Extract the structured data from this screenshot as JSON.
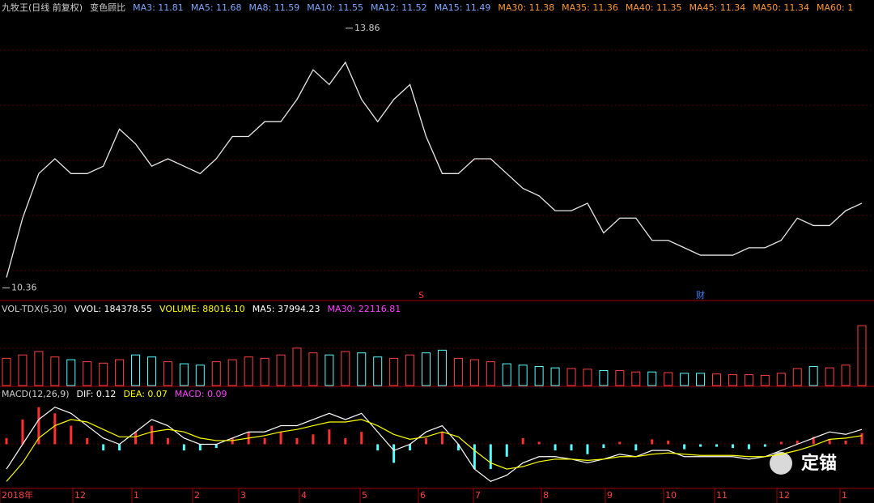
{
  "header": [
    {
      "text": "九牧王(日线 前复权)",
      "color": "#d0d0d0"
    },
    {
      "text": "变色顾比",
      "color": "#d0d0d0"
    },
    {
      "text": "MA3: 11.81",
      "color": "#7fa8ff"
    },
    {
      "text": "MA5: 11.68",
      "color": "#7fa8ff"
    },
    {
      "text": "MA8: 11.59",
      "color": "#7fa8ff"
    },
    {
      "text": "MA10: 11.55",
      "color": "#7fa8ff"
    },
    {
      "text": "MA12: 11.52",
      "color": "#7fa8ff"
    },
    {
      "text": "MA15: 11.49",
      "color": "#7fa8ff"
    },
    {
      "text": "MA30: 11.38",
      "color": "#ff9933"
    },
    {
      "text": "MA35: 11.36",
      "color": "#ff9933"
    },
    {
      "text": "MA40: 11.35",
      "color": "#ff9933"
    },
    {
      "text": "MA45: 11.34",
      "color": "#ff9933"
    },
    {
      "text": "MA50: 11.34",
      "color": "#ff9933"
    },
    {
      "text": "MA60: 1",
      "color": "#ff9933"
    }
  ],
  "chart_data": [
    {
      "type": "line",
      "color": "#e8e8e8",
      "values": [
        10.5,
        11.3,
        11.9,
        12.1,
        11.9,
        11.9,
        12.0,
        12.5,
        12.3,
        12.0,
        12.1,
        12.0,
        11.9,
        12.1,
        12.4,
        12.4,
        12.6,
        12.6,
        12.9,
        13.3,
        13.1,
        13.4,
        12.9,
        12.6,
        12.9,
        13.1,
        12.4,
        11.9,
        11.9,
        12.1,
        12.1,
        11.9,
        11.7,
        11.6,
        11.4,
        11.4,
        11.5,
        11.1,
        11.3,
        11.3,
        11.0,
        11.0,
        10.9,
        10.8,
        10.8,
        10.8,
        10.9,
        10.9,
        11.0,
        11.3,
        11.2,
        11.2,
        11.4,
        11.5
      ],
      "ylim": [
        10.2,
        14.0
      ],
      "annotations": [
        {
          "text": "13.86",
          "value": 13.86
        },
        {
          "text": "10.36",
          "value": 10.36
        }
      ]
    },
    {
      "type": "bar",
      "up_color": "#ff4040",
      "down_color": "#55ffff",
      "legend": [
        {
          "text": "VOL-TDX(5,30)",
          "color": "#d0d0d0"
        },
        {
          "text": "VVOL: 184378.55",
          "color": "#ffffff"
        },
        {
          "text": "VOLUME: 88016.10",
          "color": "#ffff00"
        },
        {
          "text": "MA5: 37994.23",
          "color": "#ffffff"
        },
        {
          "text": "MA30: 22116.81",
          "color": "#ff40ff"
        }
      ],
      "values": [
        40000,
        45000,
        50000,
        42000,
        38000,
        35000,
        33000,
        38000,
        45000,
        42000,
        35000,
        32000,
        30000,
        35000,
        38000,
        42000,
        40000,
        45000,
        55000,
        48000,
        45000,
        50000,
        48000,
        42000,
        40000,
        45000,
        48000,
        52000,
        40000,
        38000,
        35000,
        32000,
        30000,
        28000,
        26000,
        25000,
        24000,
        22000,
        22000,
        20000,
        20000,
        19000,
        18000,
        18000,
        17000,
        16000,
        16000,
        15000,
        18000,
        25000,
        28000,
        26000,
        30000,
        88016.1
      ],
      "ylim": [
        0,
        100000
      ]
    },
    {
      "type": "macd",
      "up_color": "#ff3030",
      "down_color": "#55ffff",
      "legend": [
        {
          "text": "MACD(12,26,9)",
          "color": "#d0d0d0"
        },
        {
          "text": "DIF: 0.12",
          "color": "#ffffff"
        },
        {
          "text": "DEA: 0.07",
          "color": "#ffff00"
        },
        {
          "text": "MACD: 0.09",
          "color": "#ff40ff"
        }
      ],
      "series": [
        {
          "name": "MACD",
          "values": [
            0.05,
            0.2,
            0.3,
            0.25,
            0.15,
            0.05,
            -0.05,
            -0.05,
            0.1,
            0.15,
            0.05,
            -0.05,
            -0.05,
            -0.03,
            0.05,
            0.1,
            0.05,
            0.1,
            0.05,
            0.08,
            0.12,
            0.05,
            0.1,
            -0.05,
            -0.15,
            -0.05,
            0.05,
            0.1,
            -0.05,
            -0.2,
            -0.2,
            -0.1,
            0.05,
            0.02,
            -0.05,
            -0.05,
            -0.08,
            -0.03,
            0.02,
            -0.05,
            0.04,
            0.03,
            -0.04,
            -0.02,
            -0.02,
            -0.03,
            -0.04,
            -0.02,
            0.02,
            0.03,
            0.06,
            0.04,
            0.03,
            0.09
          ]
        },
        {
          "name": "DIF",
          "color": "#ffffff",
          "values": [
            -0.2,
            0.0,
            0.2,
            0.3,
            0.25,
            0.15,
            0.05,
            0.0,
            0.1,
            0.2,
            0.15,
            0.05,
            0.0,
            0.0,
            0.05,
            0.1,
            0.1,
            0.15,
            0.15,
            0.2,
            0.25,
            0.2,
            0.25,
            0.1,
            -0.05,
            0.0,
            0.1,
            0.15,
            0.0,
            -0.2,
            -0.3,
            -0.25,
            -0.15,
            -0.1,
            -0.1,
            -0.12,
            -0.15,
            -0.12,
            -0.08,
            -0.1,
            -0.05,
            -0.05,
            -0.1,
            -0.1,
            -0.1,
            -0.1,
            -0.12,
            -0.1,
            -0.05,
            0.0,
            0.05,
            0.1,
            0.08,
            0.12
          ]
        },
        {
          "name": "DEA",
          "color": "#ffff00",
          "values": [
            -0.3,
            -0.15,
            0.05,
            0.15,
            0.2,
            0.18,
            0.12,
            0.06,
            0.06,
            0.1,
            0.12,
            0.1,
            0.05,
            0.03,
            0.03,
            0.05,
            0.07,
            0.1,
            0.12,
            0.15,
            0.18,
            0.18,
            0.2,
            0.15,
            0.08,
            0.04,
            0.06,
            0.1,
            0.06,
            -0.05,
            -0.15,
            -0.2,
            -0.18,
            -0.14,
            -0.12,
            -0.12,
            -0.13,
            -0.12,
            -0.1,
            -0.1,
            -0.08,
            -0.07,
            -0.08,
            -0.09,
            -0.09,
            -0.09,
            -0.1,
            -0.1,
            -0.08,
            -0.05,
            -0.01,
            0.04,
            0.05,
            0.07
          ]
        }
      ],
      "ylim": [
        -0.35,
        0.35
      ]
    }
  ],
  "x_axis": [
    "2018年",
    "12",
    "1",
    "2",
    "3",
    "4",
    "5",
    "6",
    "7",
    "8",
    "9",
    "10",
    "11",
    "12",
    "1"
  ],
  "markers": [
    "S",
    "财"
  ],
  "watermark": "定锚"
}
